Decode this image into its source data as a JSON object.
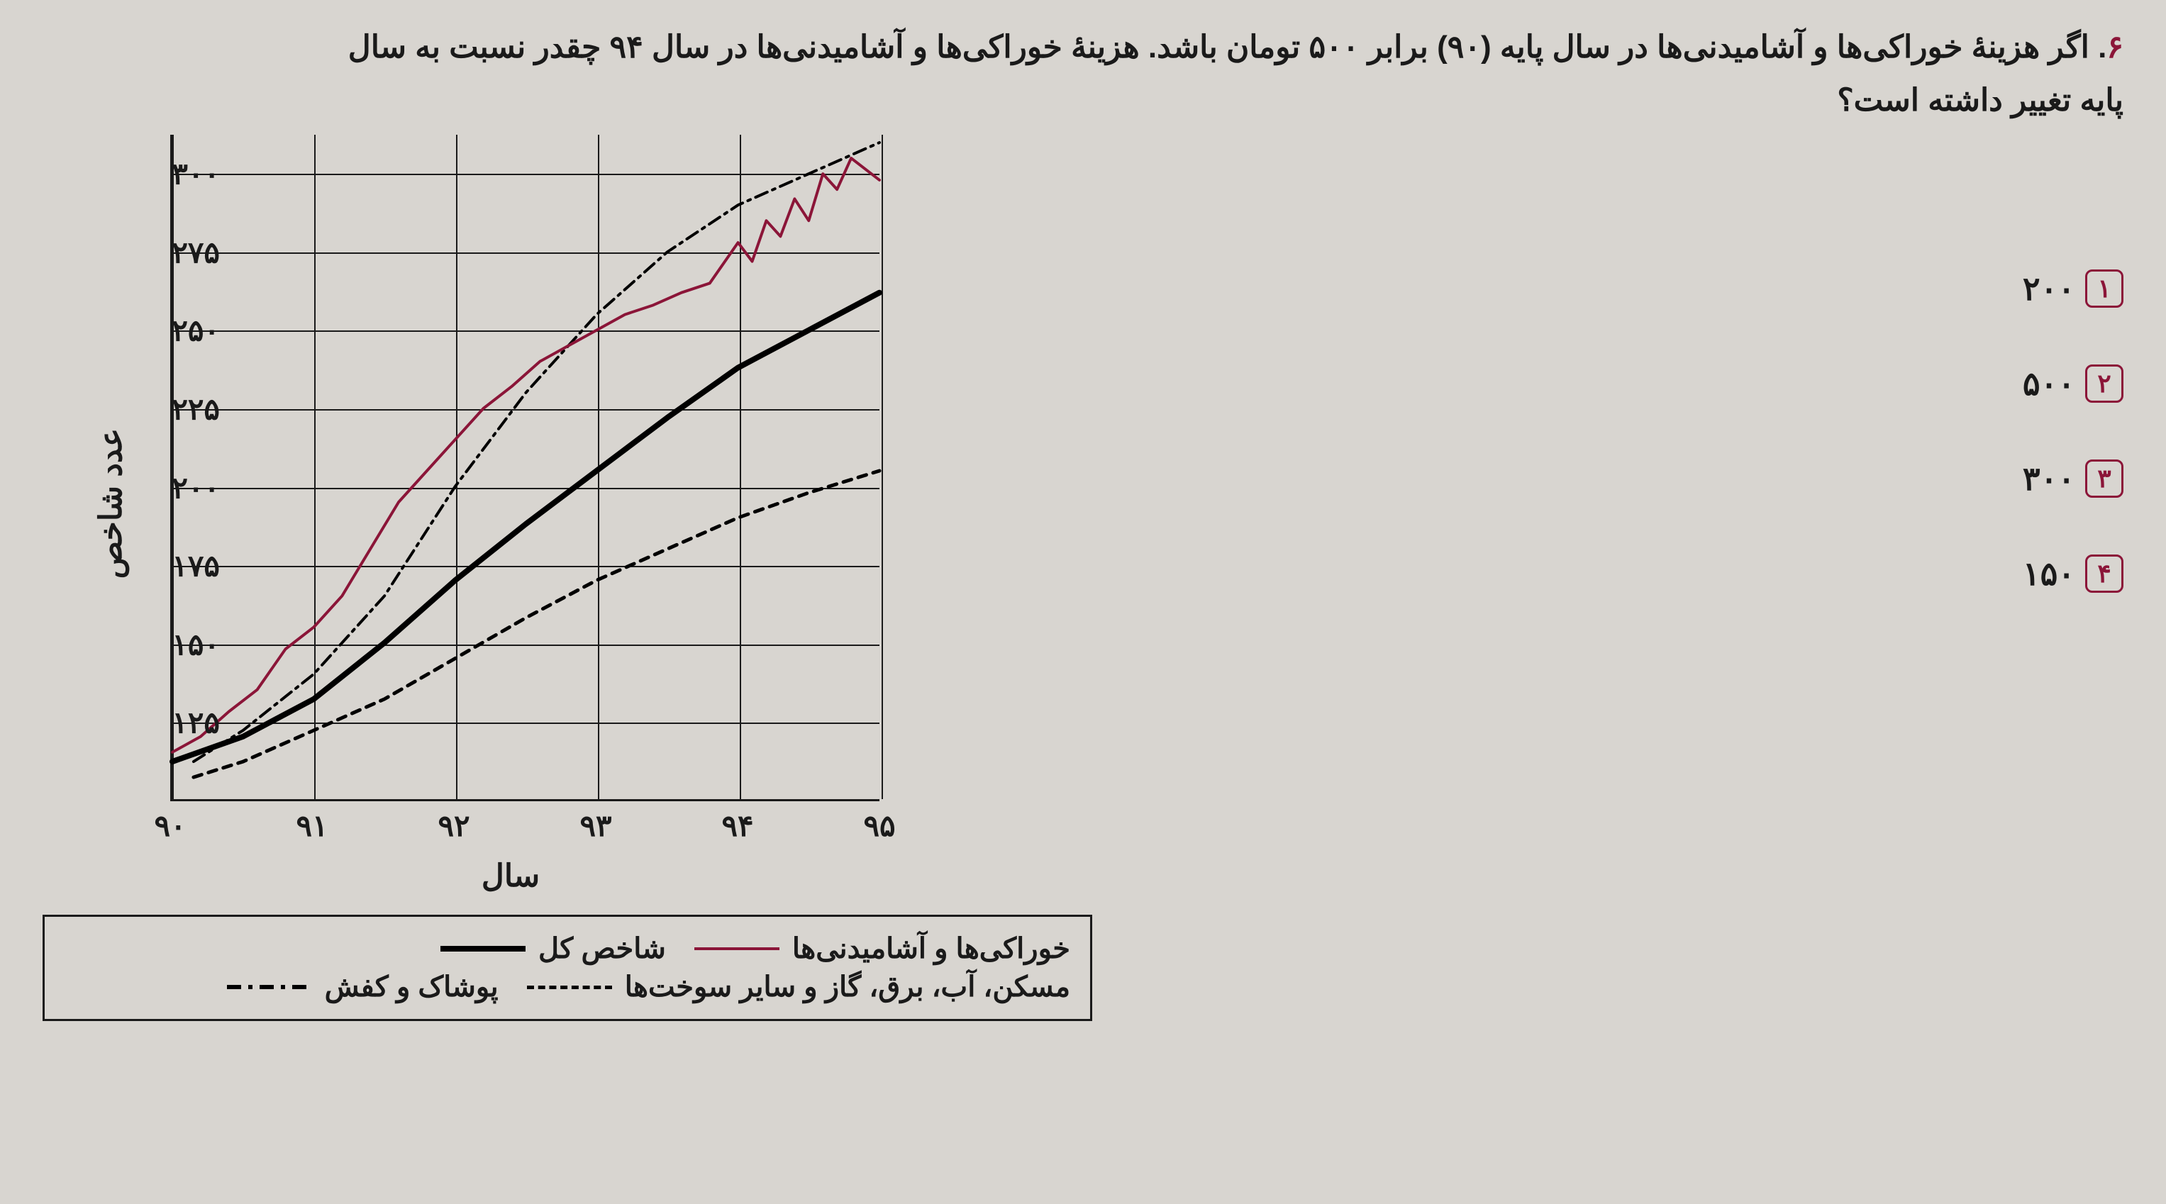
{
  "question": {
    "number": "۶",
    "text_line1": "اگر هزینهٔ خوراکی‌ها و آشامیدنی‌ها در سال پایه (۹۰) برابر ۵۰۰ تومان باشد. هزینهٔ خوراکی‌ها و آشامیدنی‌ها در سال ۹۴ چقدر نسبت به سال",
    "text_line2": "پایه تغییر داشته است؟"
  },
  "answers": [
    {
      "num": "۱",
      "label": "۲۰۰"
    },
    {
      "num": "۲",
      "label": "۵۰۰"
    },
    {
      "num": "۳",
      "label": "۳۰۰"
    },
    {
      "num": "۴",
      "label": "۱۵۰"
    }
  ],
  "chart": {
    "type": "line",
    "ylabel": "عدد شاخص",
    "xlabel": "سال",
    "ylim": [
      100,
      312.5
    ],
    "xlim": [
      90,
      95
    ],
    "ytick_step": 25,
    "yticks": [
      125,
      150,
      175,
      200,
      225,
      250,
      275,
      300
    ],
    "ytick_labels": [
      "۱۲۵",
      "۱۵۰",
      "۱۷۵",
      "۲۰۰",
      "۲۲۵",
      "۲۵۰",
      "۲۷۵",
      "۳۰۰"
    ],
    "xticks": [
      90,
      91,
      92,
      93,
      94,
      95
    ],
    "xtick_labels": [
      "۹۰",
      "۹۱",
      "۹۲",
      "۹۳",
      "۹۴",
      "۹۵"
    ],
    "grid_color": "#1a1a1a",
    "background_color": "transparent",
    "series": {
      "food": {
        "label": "خوراکی‌ها و آشامیدنی‌ها",
        "color": "#8b1538",
        "stroke_width": 4,
        "dash": "none",
        "points": [
          [
            90,
            115
          ],
          [
            90.2,
            120
          ],
          [
            90.4,
            128
          ],
          [
            90.6,
            135
          ],
          [
            90.8,
            148
          ],
          [
            91,
            155
          ],
          [
            91.2,
            165
          ],
          [
            91.4,
            180
          ],
          [
            91.6,
            195
          ],
          [
            91.8,
            205
          ],
          [
            92,
            215
          ],
          [
            92.2,
            225
          ],
          [
            92.4,
            232
          ],
          [
            92.6,
            240
          ],
          [
            92.8,
            245
          ],
          [
            93,
            250
          ],
          [
            93.2,
            255
          ],
          [
            93.4,
            258
          ],
          [
            93.6,
            262
          ],
          [
            93.8,
            265
          ],
          [
            94,
            278
          ],
          [
            94.1,
            272
          ],
          [
            94.2,
            285
          ],
          [
            94.3,
            280
          ],
          [
            94.4,
            292
          ],
          [
            94.5,
            285
          ],
          [
            94.6,
            300
          ],
          [
            94.7,
            295
          ],
          [
            94.8,
            305
          ],
          [
            95,
            298
          ]
        ]
      },
      "total": {
        "label": "شاخص کل",
        "color": "#000000",
        "stroke_width": 8,
        "dash": "none",
        "points": [
          [
            90,
            112
          ],
          [
            90.5,
            120
          ],
          [
            91,
            132
          ],
          [
            91.5,
            150
          ],
          [
            92,
            170
          ],
          [
            92.5,
            188
          ],
          [
            93,
            205
          ],
          [
            93.5,
            222
          ],
          [
            94,
            238
          ],
          [
            94.5,
            250
          ],
          [
            95,
            262
          ]
        ]
      },
      "housing": {
        "label": "مسکن، آب، برق، گاز و سایر سوخت‌ها",
        "color": "#000000",
        "stroke_width": 5,
        "dash": "12,10",
        "points": [
          [
            90.15,
            107
          ],
          [
            90.5,
            112
          ],
          [
            91,
            122
          ],
          [
            91.5,
            132
          ],
          [
            92,
            145
          ],
          [
            92.5,
            158
          ],
          [
            93,
            170
          ],
          [
            93.5,
            180
          ],
          [
            94,
            190
          ],
          [
            94.5,
            198
          ],
          [
            95,
            205
          ]
        ]
      },
      "clothing": {
        "label": "پوشاک و کفش",
        "color": "#000000",
        "stroke_width": 4,
        "dash": "18,8,4,8",
        "points": [
          [
            90.15,
            112
          ],
          [
            90.5,
            122
          ],
          [
            91,
            140
          ],
          [
            91.5,
            165
          ],
          [
            92,
            200
          ],
          [
            92.5,
            230
          ],
          [
            93,
            255
          ],
          [
            93.5,
            275
          ],
          [
            94,
            290
          ],
          [
            94.5,
            300
          ],
          [
            95,
            310
          ]
        ]
      }
    }
  },
  "legend": {
    "row1": [
      {
        "label": "خوراکی‌ها و آشامیدنی‌ها",
        "swatch": "sw-solid-thin"
      },
      {
        "label": "شاخص کل",
        "swatch": "sw-solid-thick"
      }
    ],
    "row2": [
      {
        "label": "مسکن، آب، برق، گاز و سایر سوخت‌ها",
        "swatch": "sw-dashed"
      },
      {
        "label": "پوشاک و کفش",
        "swatch": "sw-dashdot"
      }
    ]
  }
}
